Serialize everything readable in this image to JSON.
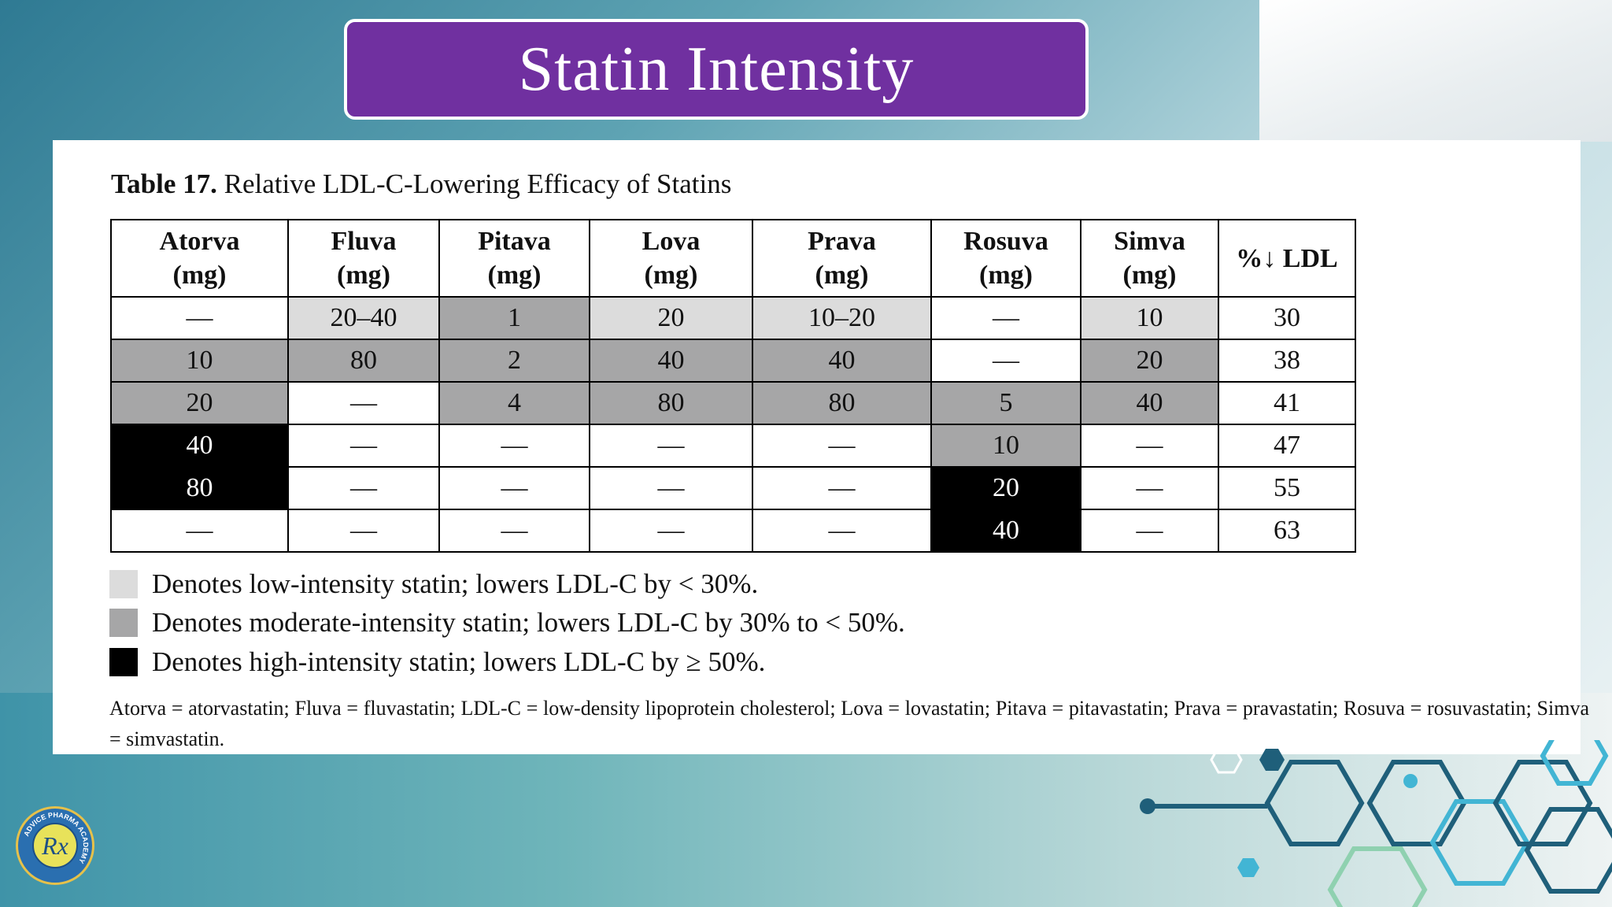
{
  "slide": {
    "title": "Statin Intensity",
    "caption_number": "Table 17.",
    "caption_text": " Relative LDL-C-Lowering Efficacy of Statins"
  },
  "table": {
    "headers": [
      "Atorva\n(mg)",
      "Fluva\n(mg)",
      "Pitava\n(mg)",
      "Lova\n(mg)",
      "Prava\n(mg)",
      "Rosuva\n(mg)",
      "Simva\n(mg)",
      "%↓ LDL"
    ],
    "rows": [
      {
        "cells": [
          "—",
          "20–40",
          "1",
          "20",
          "10–20",
          "—",
          "10",
          "30"
        ],
        "shades": [
          "none",
          "low",
          "mod",
          "low",
          "low",
          "none",
          "low",
          "none"
        ]
      },
      {
        "cells": [
          "10",
          "80",
          "2",
          "40",
          "40",
          "—",
          "20",
          "38"
        ],
        "shades": [
          "mod",
          "mod",
          "mod",
          "mod",
          "mod",
          "none",
          "mod",
          "none"
        ]
      },
      {
        "cells": [
          "20",
          "—",
          "4",
          "80",
          "80",
          "5",
          "40",
          "41"
        ],
        "shades": [
          "mod",
          "none",
          "mod",
          "mod",
          "mod",
          "mod",
          "mod",
          "none"
        ]
      },
      {
        "cells": [
          "40",
          "—",
          "—",
          "—",
          "—",
          "10",
          "—",
          "47"
        ],
        "shades": [
          "high",
          "none",
          "none",
          "none",
          "none",
          "mod",
          "none",
          "none"
        ]
      },
      {
        "cells": [
          "80",
          "—",
          "—",
          "—",
          "—",
          "20",
          "—",
          "55"
        ],
        "shades": [
          "high",
          "none",
          "none",
          "none",
          "none",
          "high",
          "none",
          "none"
        ]
      },
      {
        "cells": [
          "—",
          "—",
          "—",
          "—",
          "—",
          "40",
          "—",
          "63"
        ],
        "shades": [
          "none",
          "none",
          "none",
          "none",
          "none",
          "high",
          "none",
          "none"
        ]
      }
    ]
  },
  "legend": [
    {
      "text": "Denotes low-intensity statin; lowers LDL-C by < 30%.",
      "color": "#dcdcdc"
    },
    {
      "text": "Denotes moderate-intensity statin; lowers LDL-C by 30% to < 50%.",
      "color": "#a6a6a7"
    },
    {
      "text": "Denotes high-intensity statin; lowers LDL-C by ≥ 50%.",
      "color": "#000000"
    }
  ],
  "footnote": "Atorva = atorvastatin; Fluva = fluvastatin; LDL-C = low-density lipoprotein cholesterol; Lova = lovastatin; Pitava = pitavastatin; Prava = pravastatin; Rosuva = rosuvastatin; Simva = simvastatin.",
  "logo": {
    "symbol": "Rx",
    "ring_text": "ADVICE PHARMA ACADEMY"
  },
  "colors": {
    "title_bg": "#7030a0",
    "low": "#dcdcdc",
    "moderate": "#a6a6a7",
    "high": "#000000"
  }
}
